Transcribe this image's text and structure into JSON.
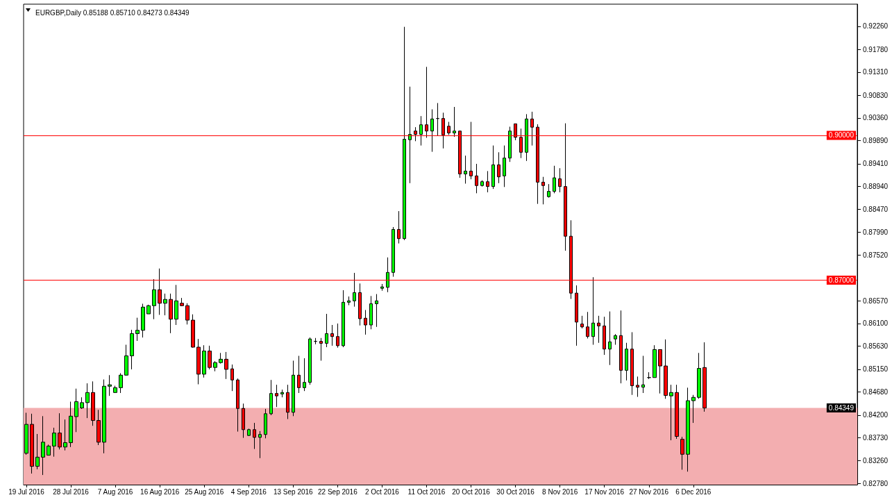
{
  "chart_data": {
    "type": "candlestick",
    "title": "EURGBP,Daily 0.85188 0.85710 0.84273 0.84349",
    "categories": [
      "19 Jul 2016",
      null,
      null,
      null,
      null,
      null,
      null,
      null,
      "28 Jul 2016",
      null,
      null,
      null,
      null,
      null,
      null,
      null,
      "7 Aug 2016",
      null,
      null,
      null,
      null,
      null,
      null,
      null,
      "16 Aug 2016",
      null,
      null,
      null,
      null,
      null,
      null,
      null,
      "25 Aug 2016",
      null,
      null,
      null,
      null,
      null,
      null,
      null,
      "4 Sep 2016",
      null,
      null,
      null,
      null,
      null,
      null,
      null,
      "13 Sep 2016",
      null,
      null,
      null,
      null,
      null,
      null,
      null,
      "22 Sep 2016",
      null,
      null,
      null,
      null,
      null,
      null,
      null,
      "2 Oct 2016",
      null,
      null,
      null,
      null,
      null,
      null,
      null,
      "11 Oct 2016",
      null,
      null,
      null,
      null,
      null,
      null,
      null,
      "20 Oct 2016",
      null,
      null,
      null,
      null,
      null,
      null,
      null,
      "30 Oct 2016",
      null,
      null,
      null,
      null,
      null,
      null,
      null,
      "8 Nov 2016",
      null,
      null,
      null,
      null,
      null,
      null,
      null,
      "17 Nov 2016",
      null,
      null,
      null,
      null,
      null,
      null,
      null,
      "27 Nov 2016",
      null,
      null,
      null,
      null,
      null,
      null,
      null,
      "6 Dec 2016",
      null,
      null,
      null,
      null,
      null,
      null,
      null,
      null,
      null,
      null,
      null,
      null,
      null,
      null,
      null,
      null,
      null,
      null,
      null,
      null,
      null,
      null,
      null,
      null,
      null,
      null,
      null,
      null,
      null
    ],
    "ohlc": [
      [
        0.8341,
        0.8425,
        0.8338,
        0.8401
      ],
      [
        0.8401,
        0.8423,
        0.8299,
        0.8314
      ],
      [
        0.8314,
        0.8381,
        0.8308,
        0.8333
      ],
      [
        0.8333,
        0.8418,
        0.8296,
        0.8364
      ],
      [
        0.8337,
        0.8359,
        0.8337,
        0.8356
      ],
      [
        0.8356,
        0.8394,
        0.8334,
        0.8383
      ],
      [
        0.8383,
        0.8424,
        0.8349,
        0.8354
      ],
      [
        0.8354,
        0.8411,
        0.8347,
        0.8363
      ],
      [
        0.8363,
        0.8448,
        0.8354,
        0.8418
      ],
      [
        0.8417,
        0.8475,
        0.8385,
        0.8448
      ],
      [
        0.8435,
        0.8457,
        0.8433,
        0.8446
      ],
      [
        0.8446,
        0.8486,
        0.8414,
        0.8467
      ],
      [
        0.8467,
        0.849,
        0.8398,
        0.8409
      ],
      [
        0.8409,
        0.8431,
        0.8358,
        0.8364
      ],
      [
        0.8364,
        0.8494,
        0.8341,
        0.848
      ],
      [
        0.848,
        0.8503,
        0.846,
        0.8483
      ],
      [
        0.8467,
        0.8481,
        0.8466,
        0.8477
      ],
      [
        0.8477,
        0.8507,
        0.8466,
        0.8503
      ],
      [
        0.8503,
        0.8566,
        0.8502,
        0.8543
      ],
      [
        0.8543,
        0.8597,
        0.8515,
        0.8589
      ],
      [
        0.8589,
        0.8622,
        0.8574,
        0.8596
      ],
      [
        0.8596,
        0.8651,
        0.8581,
        0.8644
      ],
      [
        0.863,
        0.8649,
        0.863,
        0.8647
      ],
      [
        0.8647,
        0.8702,
        0.8619,
        0.868
      ],
      [
        0.868,
        0.8724,
        0.8628,
        0.8652
      ],
      [
        0.8652,
        0.8672,
        0.8627,
        0.866
      ],
      [
        0.866,
        0.8672,
        0.859,
        0.8619
      ],
      [
        0.8619,
        0.869,
        0.8607,
        0.8657
      ],
      [
        0.8652,
        0.8663,
        0.8646,
        0.8647
      ],
      [
        0.8647,
        0.8652,
        0.8608,
        0.8617
      ],
      [
        0.8617,
        0.8629,
        0.856,
        0.8561
      ],
      [
        0.8561,
        0.8578,
        0.8484,
        0.8505
      ],
      [
        0.8505,
        0.8565,
        0.8498,
        0.8553
      ],
      [
        0.8553,
        0.8564,
        0.8515,
        0.8519
      ],
      [
        0.8519,
        0.8532,
        0.8511,
        0.8529
      ],
      [
        0.8529,
        0.8549,
        0.8527,
        0.8536
      ],
      [
        0.8536,
        0.8551,
        0.8495,
        0.8515
      ],
      [
        0.8516,
        0.8525,
        0.847,
        0.8493
      ],
      [
        0.8493,
        0.8496,
        0.8386,
        0.8434
      ],
      [
        0.8434,
        0.8444,
        0.8373,
        0.839
      ],
      [
        0.8378,
        0.8392,
        0.8377,
        0.839
      ],
      [
        0.839,
        0.8404,
        0.835,
        0.8374
      ],
      [
        0.8374,
        0.8387,
        0.8331,
        0.838
      ],
      [
        0.838,
        0.8433,
        0.8372,
        0.8423
      ],
      [
        0.8423,
        0.8493,
        0.842,
        0.8465
      ],
      [
        0.8465,
        0.8483,
        0.8437,
        0.846
      ],
      [
        0.8464,
        0.8473,
        0.8457,
        0.8467
      ],
      [
        0.8467,
        0.8483,
        0.8412,
        0.8426
      ],
      [
        0.8426,
        0.8533,
        0.8418,
        0.8503
      ],
      [
        0.8503,
        0.8543,
        0.8466,
        0.8477
      ],
      [
        0.8477,
        0.8538,
        0.847,
        0.8488
      ],
      [
        0.8488,
        0.8581,
        0.8483,
        0.8578
      ],
      [
        0.8573,
        0.858,
        0.8567,
        0.8573
      ],
      [
        0.8573,
        0.858,
        0.8533,
        0.8569
      ],
      [
        0.8569,
        0.863,
        0.8561,
        0.8589
      ],
      [
        0.8589,
        0.8607,
        0.8564,
        0.8583
      ],
      [
        0.8583,
        0.861,
        0.856,
        0.8564
      ],
      [
        0.8564,
        0.8679,
        0.8561,
        0.8654
      ],
      [
        0.8654,
        0.8666,
        0.8648,
        0.8657
      ],
      [
        0.8657,
        0.8715,
        0.8645,
        0.8674
      ],
      [
        0.8674,
        0.8693,
        0.8606,
        0.862
      ],
      [
        0.8621,
        0.8638,
        0.8587,
        0.8607
      ],
      [
        0.8607,
        0.8667,
        0.8598,
        0.8651
      ],
      [
        0.8651,
        0.8671,
        0.8603,
        0.8657
      ],
      [
        0.8683,
        0.8692,
        0.8678,
        0.8686
      ],
      [
        0.8685,
        0.8747,
        0.8675,
        0.8716
      ],
      [
        0.8716,
        0.881,
        0.8707,
        0.8805
      ],
      [
        0.8805,
        0.8843,
        0.8776,
        0.8786
      ],
      [
        0.8786,
        0.9225,
        0.8783,
        0.8992
      ],
      [
        0.8991,
        0.9101,
        0.8901,
        0.9002
      ],
      [
        0.9009,
        0.9017,
        0.8988,
        0.9002
      ],
      [
        0.9002,
        0.904,
        0.8979,
        0.9022
      ],
      [
        0.9022,
        0.9142,
        0.8995,
        0.9009
      ],
      [
        0.9009,
        0.9054,
        0.8966,
        0.9034
      ],
      [
        0.9035,
        0.9067,
        0.8999,
        0.9035
      ],
      [
        0.9035,
        0.9047,
        0.8973,
        0.9001
      ],
      [
        0.9019,
        0.9028,
        0.9001,
        0.9005
      ],
      [
        0.9005,
        0.9059,
        0.8997,
        0.9009
      ],
      [
        0.9009,
        0.9009,
        0.8912,
        0.892
      ],
      [
        0.892,
        0.8958,
        0.89,
        0.8926
      ],
      [
        0.8926,
        0.9028,
        0.8909,
        0.8916
      ],
      [
        0.8916,
        0.8941,
        0.888,
        0.8896
      ],
      [
        0.8896,
        0.8907,
        0.8894,
        0.8904
      ],
      [
        0.8904,
        0.8926,
        0.8882,
        0.8894
      ],
      [
        0.8894,
        0.8979,
        0.8889,
        0.8939
      ],
      [
        0.8939,
        0.8965,
        0.8901,
        0.8914
      ],
      [
        0.8916,
        0.8979,
        0.8893,
        0.8953
      ],
      [
        0.8953,
        0.9018,
        0.8945,
        0.9009
      ],
      [
        0.9024,
        0.9024,
        0.899,
        0.8996
      ],
      [
        0.8996,
        0.9014,
        0.8953,
        0.8965
      ],
      [
        0.8965,
        0.9044,
        0.8947,
        0.9034
      ],
      [
        0.9034,
        0.9049,
        0.8979,
        0.9017
      ],
      [
        0.9017,
        0.9023,
        0.8858,
        0.8903
      ],
      [
        0.8903,
        0.8914,
        0.8857,
        0.8896
      ],
      [
        0.8873,
        0.8899,
        0.8871,
        0.8884
      ],
      [
        0.8884,
        0.8937,
        0.888,
        0.8912
      ],
      [
        0.891,
        0.8932,
        0.8882,
        0.8894
      ],
      [
        0.8894,
        0.9025,
        0.8761,
        0.8791
      ],
      [
        0.8791,
        0.8824,
        0.8661,
        0.8673
      ],
      [
        0.8673,
        0.8689,
        0.8564,
        0.8613
      ],
      [
        0.8609,
        0.8626,
        0.86,
        0.8603
      ],
      [
        0.8603,
        0.8634,
        0.8579,
        0.8583
      ],
      [
        0.8583,
        0.8706,
        0.8566,
        0.8611
      ],
      [
        0.8611,
        0.8626,
        0.857,
        0.8605
      ],
      [
        0.8605,
        0.8624,
        0.8545,
        0.8557
      ],
      [
        0.8557,
        0.8635,
        0.8524,
        0.8572
      ],
      [
        0.8578,
        0.8588,
        0.8566,
        0.8585
      ],
      [
        0.8585,
        0.8637,
        0.8486,
        0.8513
      ],
      [
        0.8513,
        0.857,
        0.8492,
        0.8557
      ],
      [
        0.8557,
        0.8592,
        0.8462,
        0.8481
      ],
      [
        0.8482,
        0.85,
        0.8458,
        0.8478
      ],
      [
        0.8478,
        0.8543,
        0.8466,
        0.8483
      ],
      [
        0.8498,
        0.8509,
        0.8495,
        0.8498
      ],
      [
        0.8498,
        0.8565,
        0.8498,
        0.8556
      ],
      [
        0.8556,
        0.8556,
        0.8465,
        0.8522
      ],
      [
        0.8522,
        0.8577,
        0.8454,
        0.8461
      ],
      [
        0.846,
        0.8483,
        0.8368,
        0.8467
      ],
      [
        0.8467,
        0.8483,
        0.8371,
        0.8376
      ],
      [
        0.837,
        0.8375,
        0.8307,
        0.8339
      ],
      [
        0.8339,
        0.8477,
        0.8303,
        0.845
      ],
      [
        0.845,
        0.8462,
        0.8404,
        0.8457
      ],
      [
        0.8457,
        0.8549,
        0.8454,
        0.8517
      ],
      [
        0.85188,
        0.8571,
        0.84273,
        0.84349
      ],
      null,
      null,
      null,
      null,
      null,
      null,
      null,
      null,
      null,
      null,
      null,
      null,
      null,
      null,
      null,
      null,
      null,
      null,
      null,
      null,
      null,
      null,
      null,
      null,
      null,
      null,
      null
    ],
    "colors": [
      "#00ff00",
      "#ff0000",
      "#00ff00",
      "#00ff00",
      "#00ff00",
      "#00ff00",
      "#ff0000",
      "#00ff00",
      "#00ff00",
      "#00ff00",
      "#00ff00",
      "#00ff00",
      "#ff0000",
      "#ff0000",
      "#00ff00",
      "#00ff00",
      "#00ff00",
      "#00ff00",
      "#00ff00",
      "#00ff00",
      "#00ff00",
      "#00ff00",
      "#00ff00",
      "#00ff00",
      "#ff0000",
      "#00ff00",
      "#ff0000",
      "#00ff00",
      "#ff0000",
      "#ff0000",
      "#ff0000",
      "#ff0000",
      "#00ff00",
      "#ff0000",
      "#00ff00",
      "#00ff00",
      "#ff0000",
      "#ff0000",
      "#ff0000",
      "#ff0000",
      "#00ff00",
      "#ff0000",
      "#00ff00",
      "#00ff00",
      "#00ff00",
      "#ff0000",
      "#00ff00",
      "#ff0000",
      "#00ff00",
      "#ff0000",
      "#00ff00",
      "#00ff00",
      "#000000",
      "#ff0000",
      "#00ff00",
      "#ff0000",
      "#ff0000",
      "#00ff00",
      "#00ff00",
      "#00ff00",
      "#ff0000",
      "#ff0000",
      "#00ff00",
      "#00ff00",
      "#00ff00",
      "#00ff00",
      "#00ff00",
      "#ff0000",
      "#00ff00",
      "#00ff00",
      "#ff0000",
      "#00ff00",
      "#ff0000",
      "#00ff00",
      "#000000",
      "#ff0000",
      "#ff0000",
      "#00ff00",
      "#ff0000",
      "#00ff00",
      "#ff0000",
      "#ff0000",
      "#00ff00",
      "#ff0000",
      "#00ff00",
      "#ff0000",
      "#00ff00",
      "#00ff00",
      "#ff0000",
      "#ff0000",
      "#00ff00",
      "#ff0000",
      "#ff0000",
      "#ff0000",
      "#00ff00",
      "#00ff00",
      "#ff0000",
      "#ff0000",
      "#ff0000",
      "#ff0000",
      "#ff0000",
      "#ff0000",
      "#00ff00",
      "#ff0000",
      "#ff0000",
      "#00ff00",
      "#00ff00",
      "#ff0000",
      "#00ff00",
      "#ff0000",
      "#ff0000",
      "#00ff00",
      "#000000",
      "#00ff00",
      "#ff0000",
      "#ff0000",
      "#00ff00",
      "#ff0000",
      "#ff0000",
      "#00ff00",
      "#00ff00",
      "#00ff00",
      "#ff0000",
      null,
      null,
      null,
      null,
      null,
      null,
      null,
      null,
      null,
      null,
      null,
      null,
      null,
      null,
      null,
      null,
      null,
      null,
      null,
      null,
      null,
      null,
      null,
      null,
      null,
      null,
      null
    ],
    "ylim": [
      0.8276,
      0.9272
    ],
    "yticks": [
      {
        "value": 0.9226,
        "label": "0.92260"
      },
      {
        "value": 0.9178,
        "label": "0.91780"
      },
      {
        "value": 0.9131,
        "label": "0.91310"
      },
      {
        "value": 0.9083,
        "label": "0.90830"
      },
      {
        "value": 0.9036,
        "label": "0.90360"
      },
      {
        "value": 0.8989,
        "label": "0.89890"
      },
      {
        "value": 0.8941,
        "label": "0.89410"
      },
      {
        "value": 0.8894,
        "label": "0.88940"
      },
      {
        "value": 0.8847,
        "label": "0.88470"
      },
      {
        "value": 0.8799,
        "label": "0.87990"
      },
      {
        "value": 0.8752,
        "label": "0.87520"
      },
      {
        "value": 0.8657,
        "label": "0.86570"
      },
      {
        "value": 0.861,
        "label": "0.86100"
      },
      {
        "value": 0.8563,
        "label": "0.85630"
      },
      {
        "value": 0.8515,
        "label": "0.85150"
      },
      {
        "value": 0.8468,
        "label": "0.84680"
      },
      {
        "value": 0.842,
        "label": "0.84200"
      },
      {
        "value": 0.8373,
        "label": "0.83730"
      },
      {
        "value": 0.8326,
        "label": "0.83260"
      },
      {
        "value": 0.8278,
        "label": "0.82780"
      }
    ],
    "grid": false,
    "ref_lines": [
      {
        "axis": "y",
        "value": 0.9,
        "label": "0.90000",
        "color": "#ff0000",
        "line_style": "solid"
      },
      {
        "axis": "y",
        "value": 0.87,
        "label": "0.87000",
        "color": "#ff0000",
        "line_style": "solid"
      }
    ],
    "bands": [
      {
        "axis": "y",
        "from": 0.8276,
        "to": 0.8435,
        "color": "#f3aeb0"
      }
    ],
    "annotations": [
      "0.84349"
    ]
  }
}
